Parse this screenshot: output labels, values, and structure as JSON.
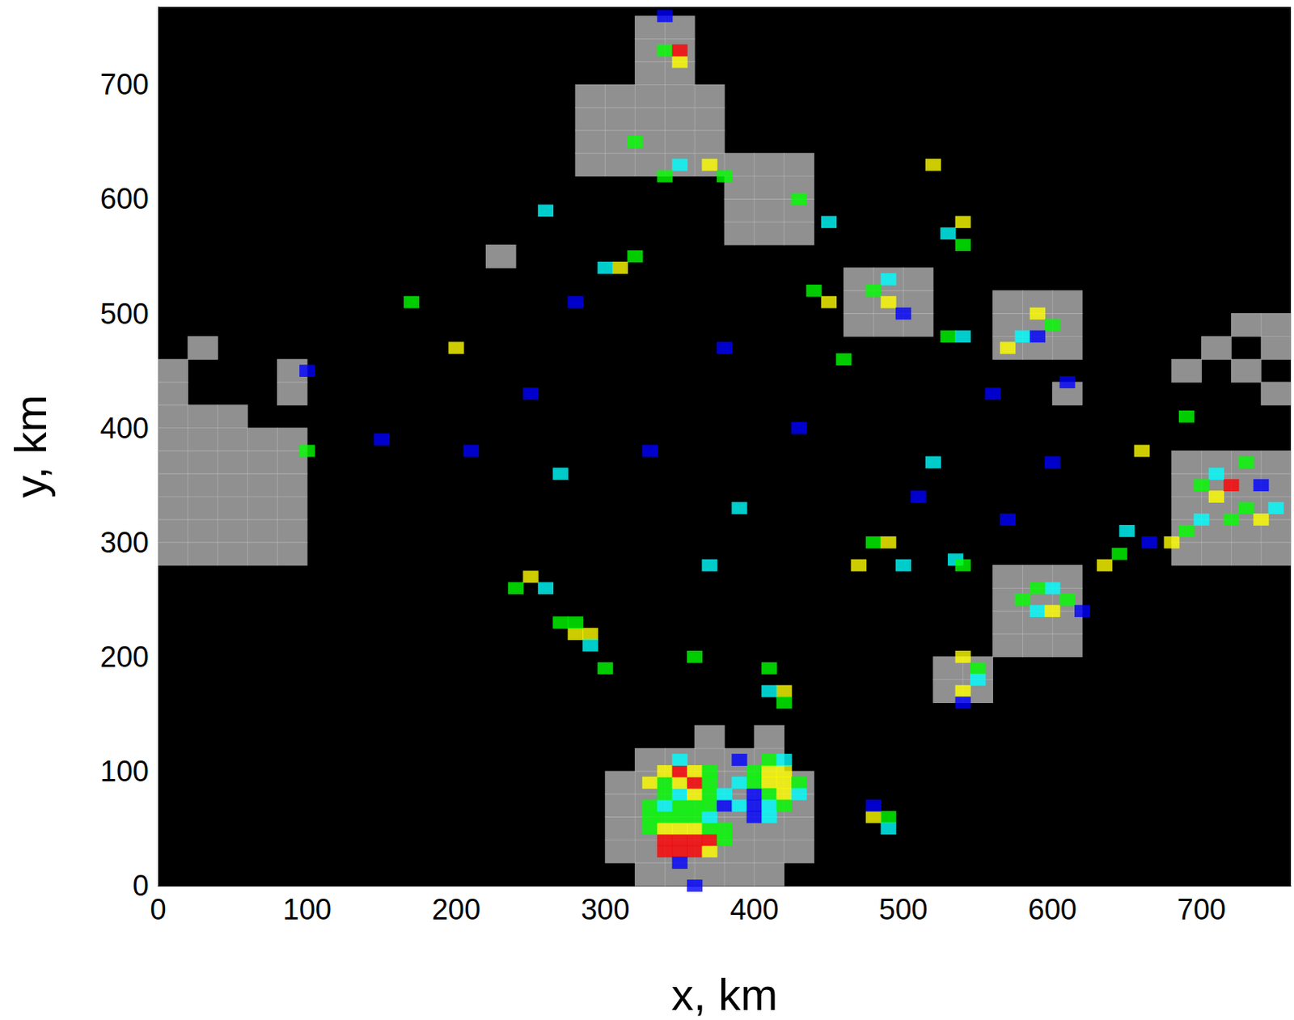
{
  "chart_data": {
    "type": "heatmap",
    "xlabel": "x, km",
    "ylabel": "y, km",
    "xlim": [
      0,
      760
    ],
    "ylim": [
      0,
      768
    ],
    "xticks": [
      0,
      100,
      200,
      300,
      400,
      500,
      600,
      700
    ],
    "yticks": [
      0,
      100,
      200,
      300,
      400,
      500,
      600,
      700
    ],
    "grid": false,
    "tick_labels": true,
    "cell_size": 10,
    "grey_cell_size": 20,
    "color_scale": {
      "range": [
        1,
        6
      ],
      "values": [
        1,
        2,
        3,
        4,
        5,
        6
      ],
      "colors": [
        "#b4b4b4",
        "#0000ff",
        "#00ffff",
        "#00ff00",
        "#ffff00",
        "#ff0000"
      ]
    },
    "grey_cells": [
      [
        330,
        10,
        1
      ],
      [
        350,
        10,
        1
      ],
      [
        370,
        10,
        1
      ],
      [
        390,
        10,
        1
      ],
      [
        410,
        10,
        1
      ],
      [
        310,
        30,
        1
      ],
      [
        330,
        30,
        1
      ],
      [
        350,
        30,
        1
      ],
      [
        370,
        30,
        1
      ],
      [
        390,
        30,
        1
      ],
      [
        410,
        30,
        1
      ],
      [
        430,
        30,
        1
      ],
      [
        310,
        50,
        1
      ],
      [
        330,
        50,
        1
      ],
      [
        350,
        50,
        1
      ],
      [
        370,
        50,
        1
      ],
      [
        390,
        50,
        1
      ],
      [
        410,
        50,
        1
      ],
      [
        430,
        50,
        1
      ],
      [
        310,
        70,
        1
      ],
      [
        330,
        70,
        1
      ],
      [
        350,
        70,
        1
      ],
      [
        370,
        70,
        1
      ],
      [
        390,
        70,
        1
      ],
      [
        410,
        70,
        1
      ],
      [
        430,
        70,
        1
      ],
      [
        310,
        90,
        1
      ],
      [
        330,
        90,
        1
      ],
      [
        350,
        90,
        1
      ],
      [
        370,
        90,
        1
      ],
      [
        390,
        90,
        1
      ],
      [
        410,
        90,
        1
      ],
      [
        430,
        90,
        1
      ],
      [
        330,
        110,
        1
      ],
      [
        350,
        110,
        1
      ],
      [
        370,
        110,
        1
      ],
      [
        390,
        110,
        1
      ],
      [
        410,
        110,
        1
      ],
      [
        370,
        130,
        1
      ],
      [
        410,
        130,
        1
      ],
      [
        10,
        290,
        1
      ],
      [
        30,
        290,
        1
      ],
      [
        50,
        290,
        1
      ],
      [
        70,
        290,
        1
      ],
      [
        90,
        290,
        1
      ],
      [
        10,
        310,
        1
      ],
      [
        30,
        310,
        1
      ],
      [
        50,
        310,
        1
      ],
      [
        70,
        310,
        1
      ],
      [
        90,
        310,
        1
      ],
      [
        10,
        330,
        1
      ],
      [
        30,
        330,
        1
      ],
      [
        50,
        330,
        1
      ],
      [
        70,
        330,
        1
      ],
      [
        90,
        330,
        1
      ],
      [
        10,
        350,
        1
      ],
      [
        30,
        350,
        1
      ],
      [
        50,
        350,
        1
      ],
      [
        70,
        350,
        1
      ],
      [
        90,
        350,
        1
      ],
      [
        10,
        370,
        1
      ],
      [
        30,
        370,
        1
      ],
      [
        50,
        370,
        1
      ],
      [
        70,
        370,
        1
      ],
      [
        90,
        370,
        1
      ],
      [
        10,
        390,
        1
      ],
      [
        30,
        390,
        1
      ],
      [
        50,
        390,
        1
      ],
      [
        70,
        390,
        1
      ],
      [
        90,
        390,
        1
      ],
      [
        10,
        410,
        1
      ],
      [
        30,
        410,
        1
      ],
      [
        50,
        410,
        1
      ],
      [
        10,
        430,
        1
      ],
      [
        90,
        430,
        1
      ],
      [
        90,
        450,
        1
      ],
      [
        10,
        450,
        1
      ],
      [
        30,
        470,
        1
      ],
      [
        330,
        710,
        1
      ],
      [
        350,
        710,
        1
      ],
      [
        330,
        730,
        1
      ],
      [
        350,
        730,
        1
      ],
      [
        330,
        750,
        1
      ],
      [
        350,
        750,
        1
      ],
      [
        290,
        630,
        1
      ],
      [
        310,
        630,
        1
      ],
      [
        330,
        630,
        1
      ],
      [
        350,
        630,
        1
      ],
      [
        370,
        630,
        1
      ],
      [
        290,
        650,
        1
      ],
      [
        310,
        650,
        1
      ],
      [
        330,
        650,
        1
      ],
      [
        350,
        650,
        1
      ],
      [
        370,
        650,
        1
      ],
      [
        290,
        670,
        1
      ],
      [
        310,
        670,
        1
      ],
      [
        330,
        670,
        1
      ],
      [
        350,
        670,
        1
      ],
      [
        370,
        670,
        1
      ],
      [
        290,
        690,
        1
      ],
      [
        310,
        690,
        1
      ],
      [
        330,
        690,
        1
      ],
      [
        350,
        690,
        1
      ],
      [
        370,
        690,
        1
      ],
      [
        390,
        570,
        1
      ],
      [
        410,
        570,
        1
      ],
      [
        430,
        570,
        1
      ],
      [
        390,
        590,
        1
      ],
      [
        410,
        590,
        1
      ],
      [
        430,
        590,
        1
      ],
      [
        390,
        610,
        1
      ],
      [
        410,
        610,
        1
      ],
      [
        430,
        610,
        1
      ],
      [
        390,
        630,
        1
      ],
      [
        410,
        630,
        1
      ],
      [
        430,
        630,
        1
      ],
      [
        470,
        490,
        1
      ],
      [
        490,
        490,
        1
      ],
      [
        510,
        490,
        1
      ],
      [
        470,
        510,
        1
      ],
      [
        490,
        510,
        1
      ],
      [
        510,
        510,
        1
      ],
      [
        470,
        530,
        1
      ],
      [
        490,
        530,
        1
      ],
      [
        510,
        530,
        1
      ],
      [
        570,
        470,
        1
      ],
      [
        590,
        470,
        1
      ],
      [
        610,
        470,
        1
      ],
      [
        570,
        490,
        1
      ],
      [
        590,
        490,
        1
      ],
      [
        610,
        490,
        1
      ],
      [
        570,
        510,
        1
      ],
      [
        590,
        510,
        1
      ],
      [
        610,
        510,
        1
      ],
      [
        570,
        210,
        1
      ],
      [
        590,
        210,
        1
      ],
      [
        610,
        210,
        1
      ],
      [
        570,
        230,
        1
      ],
      [
        590,
        230,
        1
      ],
      [
        610,
        230,
        1
      ],
      [
        570,
        250,
        1
      ],
      [
        590,
        250,
        1
      ],
      [
        610,
        250,
        1
      ],
      [
        570,
        270,
        1
      ],
      [
        590,
        270,
        1
      ],
      [
        610,
        270,
        1
      ],
      [
        690,
        290,
        1
      ],
      [
        710,
        290,
        1
      ],
      [
        730,
        290,
        1
      ],
      [
        750,
        290,
        1
      ],
      [
        690,
        310,
        1
      ],
      [
        710,
        310,
        1
      ],
      [
        730,
        310,
        1
      ],
      [
        750,
        310,
        1
      ],
      [
        690,
        330,
        1
      ],
      [
        710,
        330,
        1
      ],
      [
        730,
        330,
        1
      ],
      [
        750,
        330,
        1
      ],
      [
        690,
        350,
        1
      ],
      [
        710,
        350,
        1
      ],
      [
        730,
        350,
        1
      ],
      [
        750,
        350,
        1
      ],
      [
        690,
        370,
        1
      ],
      [
        710,
        370,
        1
      ],
      [
        730,
        370,
        1
      ],
      [
        750,
        370,
        1
      ],
      [
        530,
        170,
        1
      ],
      [
        550,
        170,
        1
      ],
      [
        530,
        190,
        1
      ],
      [
        550,
        190,
        1
      ],
      [
        690,
        450,
        1
      ],
      [
        710,
        470,
        1
      ],
      [
        730,
        450,
        1
      ],
      [
        750,
        470,
        1
      ],
      [
        750,
        430,
        1
      ],
      [
        730,
        490,
        1
      ],
      [
        750,
        490,
        1
      ],
      [
        610,
        430,
        1
      ],
      [
        230,
        550,
        1
      ]
    ],
    "cells": [
      [
        340,
        30,
        6
      ],
      [
        350,
        30,
        6
      ],
      [
        360,
        30,
        6
      ],
      [
        370,
        30,
        5
      ],
      [
        340,
        40,
        6
      ],
      [
        350,
        40,
        6
      ],
      [
        360,
        40,
        6
      ],
      [
        370,
        40,
        6
      ],
      [
        380,
        40,
        4
      ],
      [
        330,
        50,
        4
      ],
      [
        340,
        50,
        5
      ],
      [
        350,
        50,
        5
      ],
      [
        360,
        50,
        5
      ],
      [
        370,
        50,
        4
      ],
      [
        380,
        50,
        4
      ],
      [
        330,
        60,
        4
      ],
      [
        340,
        60,
        4
      ],
      [
        350,
        60,
        4
      ],
      [
        360,
        60,
        4
      ],
      [
        370,
        60,
        3
      ],
      [
        330,
        70,
        4
      ],
      [
        340,
        70,
        3
      ],
      [
        350,
        70,
        4
      ],
      [
        360,
        70,
        4
      ],
      [
        370,
        70,
        4
      ],
      [
        380,
        70,
        2
      ],
      [
        340,
        80,
        4
      ],
      [
        350,
        80,
        3
      ],
      [
        360,
        80,
        5
      ],
      [
        370,
        80,
        4
      ],
      [
        380,
        80,
        3
      ],
      [
        400,
        80,
        2
      ],
      [
        330,
        90,
        5
      ],
      [
        340,
        90,
        4
      ],
      [
        350,
        90,
        5
      ],
      [
        360,
        90,
        6
      ],
      [
        370,
        90,
        4
      ],
      [
        390,
        90,
        3
      ],
      [
        340,
        100,
        5
      ],
      [
        350,
        100,
        6
      ],
      [
        360,
        100,
        5
      ],
      [
        370,
        100,
        4
      ],
      [
        400,
        100,
        4
      ],
      [
        410,
        100,
        5
      ],
      [
        420,
        100,
        5
      ],
      [
        400,
        90,
        4
      ],
      [
        410,
        90,
        5
      ],
      [
        420,
        90,
        5
      ],
      [
        430,
        90,
        4
      ],
      [
        410,
        80,
        4
      ],
      [
        420,
        80,
        5
      ],
      [
        430,
        80,
        3
      ],
      [
        390,
        70,
        3
      ],
      [
        400,
        70,
        2
      ],
      [
        410,
        70,
        3
      ],
      [
        420,
        70,
        4
      ],
      [
        400,
        60,
        2
      ],
      [
        410,
        60,
        3
      ],
      [
        390,
        110,
        2
      ],
      [
        410,
        110,
        4
      ],
      [
        420,
        110,
        3
      ],
      [
        350,
        110,
        3
      ],
      [
        350,
        20,
        2
      ],
      [
        360,
        0,
        2
      ],
      [
        480,
        60,
        5
      ],
      [
        490,
        60,
        4
      ],
      [
        480,
        70,
        2
      ],
      [
        490,
        50,
        3
      ],
      [
        410,
        190,
        4
      ],
      [
        420,
        170,
        5
      ],
      [
        420,
        160,
        4
      ],
      [
        410,
        170,
        3
      ],
      [
        360,
        200,
        4
      ],
      [
        270,
        230,
        4
      ],
      [
        280,
        220,
        5
      ],
      [
        290,
        220,
        5
      ],
      [
        280,
        230,
        4
      ],
      [
        290,
        210,
        3
      ],
      [
        300,
        190,
        4
      ],
      [
        240,
        260,
        4
      ],
      [
        250,
        270,
        5
      ],
      [
        260,
        260,
        3
      ],
      [
        540,
        200,
        5
      ],
      [
        550,
        190,
        4
      ],
      [
        540,
        170,
        5
      ],
      [
        550,
        180,
        3
      ],
      [
        540,
        160,
        2
      ],
      [
        580,
        250,
        4
      ],
      [
        590,
        240,
        3
      ],
      [
        600,
        240,
        5
      ],
      [
        610,
        250,
        4
      ],
      [
        600,
        260,
        3
      ],
      [
        620,
        240,
        2
      ],
      [
        590,
        260,
        4
      ],
      [
        635,
        280,
        5
      ],
      [
        645,
        290,
        4
      ],
      [
        650,
        310,
        3
      ],
      [
        665,
        300,
        2
      ],
      [
        680,
        300,
        5
      ],
      [
        690,
        310,
        4
      ],
      [
        700,
        320,
        3
      ],
      [
        710,
        340,
        5
      ],
      [
        720,
        350,
        6
      ],
      [
        730,
        330,
        4
      ],
      [
        740,
        320,
        5
      ],
      [
        720,
        320,
        4
      ],
      [
        750,
        330,
        3
      ],
      [
        710,
        360,
        3
      ],
      [
        700,
        350,
        4
      ],
      [
        740,
        350,
        2
      ],
      [
        730,
        370,
        4
      ],
      [
        660,
        380,
        5
      ],
      [
        690,
        410,
        4
      ],
      [
        470,
        280,
        5
      ],
      [
        480,
        300,
        4
      ],
      [
        490,
        300,
        5
      ],
      [
        500,
        280,
        3
      ],
      [
        535,
        285,
        3
      ],
      [
        540,
        280,
        4
      ],
      [
        560,
        430,
        2
      ],
      [
        570,
        470,
        5
      ],
      [
        580,
        480,
        3
      ],
      [
        590,
        500,
        5
      ],
      [
        600,
        490,
        4
      ],
      [
        590,
        480,
        2
      ],
      [
        480,
        520,
        4
      ],
      [
        490,
        510,
        5
      ],
      [
        490,
        530,
        3
      ],
      [
        500,
        500,
        2
      ],
      [
        450,
        510,
        5
      ],
      [
        530,
        480,
        4
      ],
      [
        540,
        480,
        3
      ],
      [
        540,
        580,
        5
      ],
      [
        540,
        560,
        4
      ],
      [
        530,
        570,
        3
      ],
      [
        520,
        630,
        5
      ],
      [
        450,
        580,
        3
      ],
      [
        310,
        540,
        5
      ],
      [
        320,
        550,
        4
      ],
      [
        300,
        540,
        3
      ],
      [
        200,
        470,
        5
      ],
      [
        170,
        510,
        4
      ],
      [
        100,
        380,
        4
      ],
      [
        100,
        450,
        2
      ],
      [
        340,
        620,
        4
      ],
      [
        350,
        630,
        3
      ],
      [
        370,
        630,
        5
      ],
      [
        380,
        620,
        4
      ],
      [
        320,
        650,
        4
      ],
      [
        350,
        720,
        5
      ],
      [
        340,
        730,
        4
      ],
      [
        350,
        730,
        6
      ],
      [
        340,
        760,
        2
      ],
      [
        430,
        600,
        4
      ],
      [
        250,
        430,
        2
      ],
      [
        150,
        390,
        2
      ],
      [
        210,
        380,
        2
      ],
      [
        270,
        360,
        3
      ],
      [
        330,
        380,
        2
      ],
      [
        390,
        330,
        3
      ],
      [
        370,
        280,
        3
      ],
      [
        260,
        590,
        3
      ],
      [
        520,
        370,
        3
      ],
      [
        510,
        340,
        2
      ],
      [
        600,
        370,
        2
      ],
      [
        570,
        320,
        2
      ],
      [
        280,
        510,
        2
      ],
      [
        380,
        470,
        2
      ],
      [
        430,
        400,
        2
      ],
      [
        440,
        520,
        4
      ],
      [
        460,
        460,
        4
      ],
      [
        610,
        440,
        2
      ]
    ]
  }
}
